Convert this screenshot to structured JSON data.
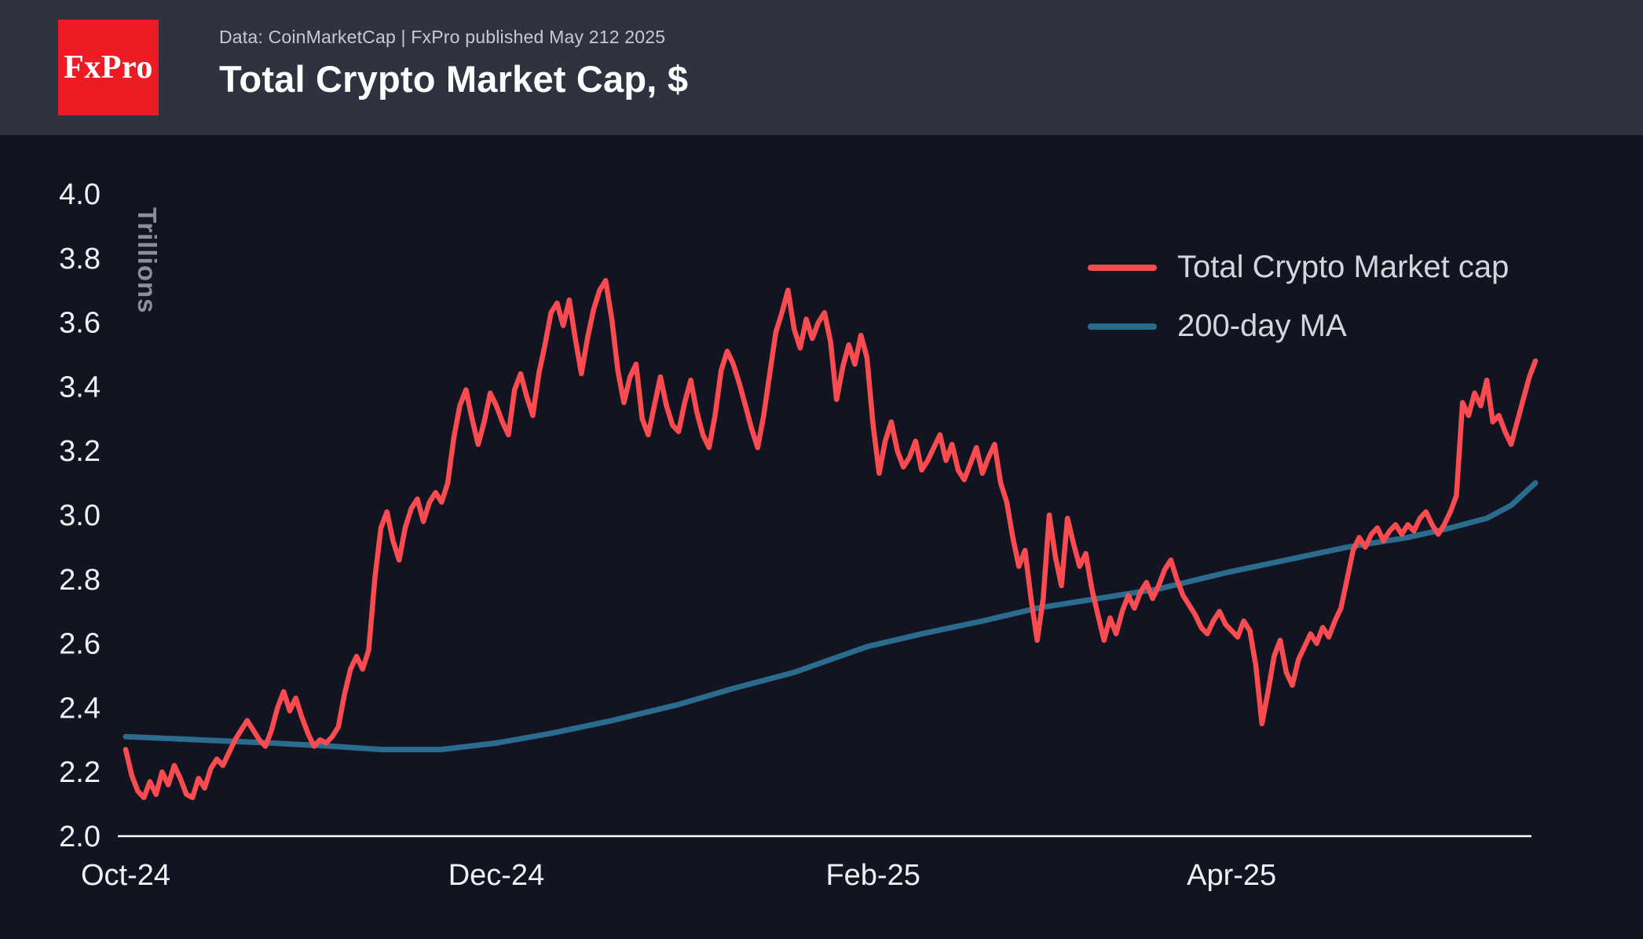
{
  "header": {
    "logo_text": "FxPro",
    "source_line": "Data: CoinMarketCap | FxPro published May 212 2025",
    "title": "Total Crypto Market Cap, $"
  },
  "colors": {
    "background": "#121521",
    "header_background": "#2e333f",
    "logo_red": "#ed1c24",
    "market_cap_line": "#fa4b51",
    "ma_line": "#2b6c8e",
    "axis": "#ffffff",
    "tick_text": "#f0f1f4"
  },
  "chart_data": {
    "type": "line",
    "title": "Total Crypto Market Cap, $",
    "xlabel": "",
    "ylabel": "Trillions",
    "ylim": [
      2.0,
      4.0
    ],
    "yticks": [
      2.0,
      2.2,
      2.4,
      2.6,
      2.8,
      3.0,
      3.2,
      3.4,
      3.6,
      3.8,
      4.0
    ],
    "x_range_days": [
      0,
      232
    ],
    "xticks": [
      {
        "label": "Oct-24",
        "day": 0
      },
      {
        "label": "Dec-24",
        "day": 61
      },
      {
        "label": "Feb-25",
        "day": 123
      },
      {
        "label": "Apr-25",
        "day": 182
      }
    ],
    "grid": false,
    "legend_position": "upper-right",
    "legend": [
      {
        "name": "Total Crypto Market cap",
        "color": "#fa4b51"
      },
      {
        "name": "200-day MA",
        "color": "#2b6c8e"
      }
    ],
    "series": [
      {
        "name": "Total Crypto Market cap",
        "color": "#fa4b51",
        "x_unit": "days_from_Oct-1-2024",
        "values": [
          2.27,
          2.19,
          2.14,
          2.12,
          2.17,
          2.13,
          2.2,
          2.16,
          2.22,
          2.18,
          2.13,
          2.12,
          2.18,
          2.15,
          2.21,
          2.24,
          2.22,
          2.26,
          2.3,
          2.33,
          2.36,
          2.33,
          2.3,
          2.28,
          2.33,
          2.4,
          2.45,
          2.39,
          2.43,
          2.37,
          2.32,
          2.28,
          2.3,
          2.29,
          2.31,
          2.34,
          2.44,
          2.52,
          2.56,
          2.52,
          2.58,
          2.8,
          2.96,
          3.01,
          2.92,
          2.86,
          2.96,
          3.02,
          3.05,
          2.98,
          3.04,
          3.07,
          3.04,
          3.1,
          3.24,
          3.34,
          3.39,
          3.3,
          3.22,
          3.29,
          3.38,
          3.34,
          3.29,
          3.25,
          3.39,
          3.44,
          3.37,
          3.31,
          3.44,
          3.53,
          3.63,
          3.66,
          3.59,
          3.67,
          3.55,
          3.44,
          3.55,
          3.64,
          3.7,
          3.73,
          3.61,
          3.45,
          3.35,
          3.43,
          3.47,
          3.3,
          3.25,
          3.34,
          3.43,
          3.34,
          3.28,
          3.26,
          3.35,
          3.42,
          3.32,
          3.25,
          3.21,
          3.31,
          3.45,
          3.51,
          3.47,
          3.41,
          3.34,
          3.27,
          3.21,
          3.31,
          3.44,
          3.57,
          3.63,
          3.7,
          3.58,
          3.52,
          3.61,
          3.55,
          3.6,
          3.63,
          3.54,
          3.36,
          3.46,
          3.53,
          3.47,
          3.56,
          3.49,
          3.28,
          3.13,
          3.23,
          3.29,
          3.2,
          3.15,
          3.18,
          3.23,
          3.14,
          3.17,
          3.21,
          3.25,
          3.17,
          3.22,
          3.14,
          3.11,
          3.16,
          3.21,
          3.13,
          3.18,
          3.22,
          3.1,
          3.04,
          2.93,
          2.84,
          2.89,
          2.74,
          2.61,
          2.74,
          3.0,
          2.87,
          2.78,
          2.99,
          2.91,
          2.84,
          2.88,
          2.77,
          2.69,
          2.61,
          2.68,
          2.63,
          2.7,
          2.75,
          2.71,
          2.76,
          2.79,
          2.74,
          2.78,
          2.83,
          2.86,
          2.8,
          2.75,
          2.72,
          2.69,
          2.65,
          2.63,
          2.67,
          2.7,
          2.66,
          2.64,
          2.62,
          2.67,
          2.64,
          2.53,
          2.35,
          2.45,
          2.56,
          2.61,
          2.51,
          2.47,
          2.55,
          2.59,
          2.63,
          2.6,
          2.65,
          2.62,
          2.67,
          2.71,
          2.8,
          2.89,
          2.93,
          2.9,
          2.94,
          2.96,
          2.92,
          2.95,
          2.97,
          2.94,
          2.97,
          2.95,
          2.99,
          3.01,
          2.97,
          2.94,
          2.97,
          3.01,
          3.06,
          3.35,
          3.31,
          3.38,
          3.34,
          3.42,
          3.29,
          3.31,
          3.26,
          3.22,
          3.29,
          3.36,
          3.43,
          3.48
        ]
      },
      {
        "name": "200-day MA",
        "color": "#2b6c8e",
        "x_unit": "days_from_Oct-1-2024",
        "points": [
          [
            0,
            2.31
          ],
          [
            12,
            2.3
          ],
          [
            24,
            2.29
          ],
          [
            34,
            2.28
          ],
          [
            42,
            2.27
          ],
          [
            52,
            2.27
          ],
          [
            61,
            2.29
          ],
          [
            70,
            2.32
          ],
          [
            80,
            2.36
          ],
          [
            91,
            2.41
          ],
          [
            100,
            2.46
          ],
          [
            110,
            2.51
          ],
          [
            122,
            2.59
          ],
          [
            131,
            2.63
          ],
          [
            141,
            2.67
          ],
          [
            150,
            2.71
          ],
          [
            160,
            2.74
          ],
          [
            170,
            2.77
          ],
          [
            181,
            2.82
          ],
          [
            191,
            2.86
          ],
          [
            201,
            2.9
          ],
          [
            211,
            2.93
          ],
          [
            218,
            2.96
          ],
          [
            224,
            2.99
          ],
          [
            228,
            3.03
          ],
          [
            232,
            3.1
          ]
        ]
      }
    ]
  }
}
